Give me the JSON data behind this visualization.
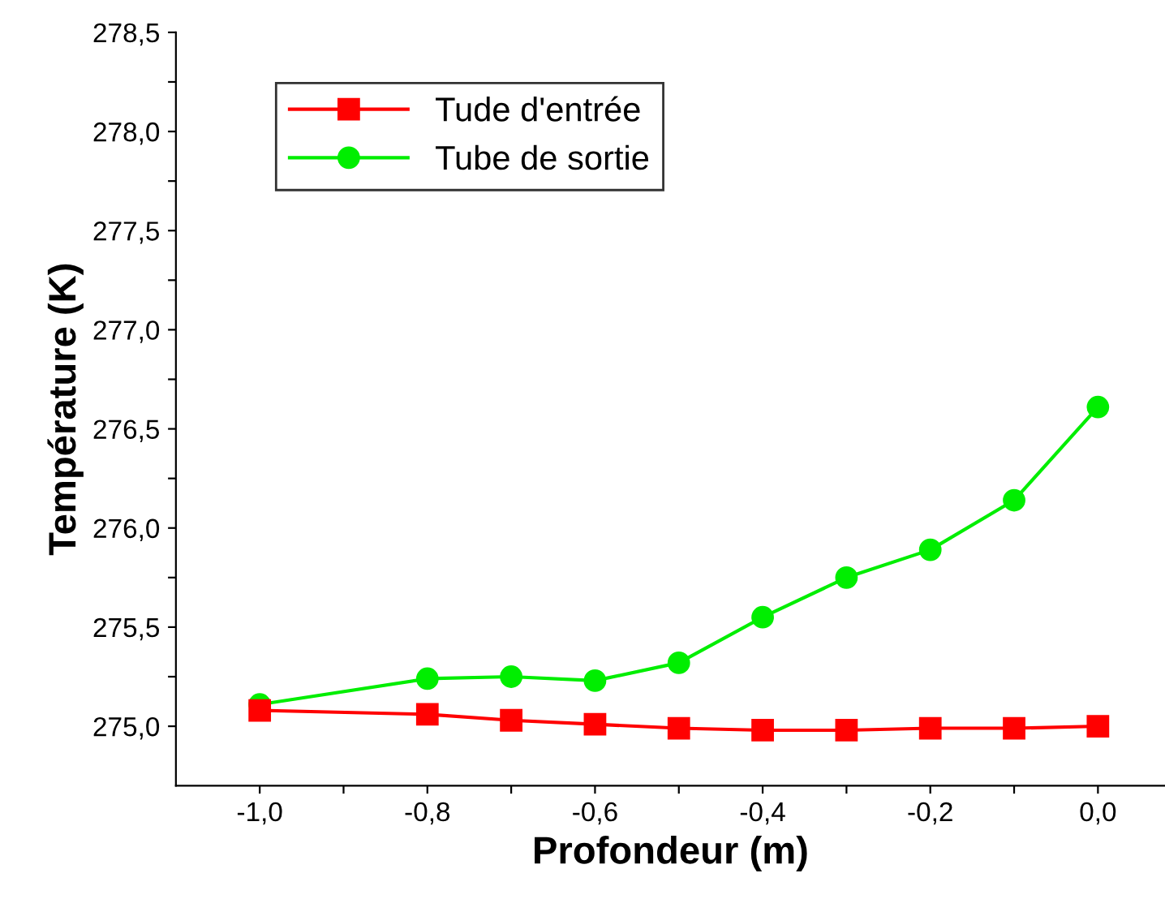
{
  "chart_data": {
    "type": "line",
    "xlabel": "Profondeur (m)",
    "ylabel": "Température (K)",
    "x": [
      -1.0,
      -0.8,
      -0.7,
      -0.6,
      -0.5,
      -0.4,
      -0.3,
      -0.2,
      -0.1,
      0.0
    ],
    "series": [
      {
        "name": "Tude d'entrée",
        "color": "#ff0000",
        "marker": "square",
        "values": [
          275.08,
          275.06,
          275.03,
          275.01,
          274.99,
          274.98,
          274.98,
          274.99,
          274.99,
          275.0
        ]
      },
      {
        "name": "Tube de sortie",
        "color": "#00ee00",
        "marker": "circle",
        "values": [
          275.11,
          275.24,
          275.25,
          275.23,
          275.32,
          275.55,
          275.75,
          275.89,
          276.14,
          276.61
        ]
      }
    ],
    "xlim": [
      -1.1,
      0.08
    ],
    "ylim": [
      274.7,
      278.5
    ],
    "xticks": [
      {
        "value": -1.0,
        "label": "-1,0"
      },
      {
        "value": -0.9,
        "label": null
      },
      {
        "value": -0.8,
        "label": "-0,8"
      },
      {
        "value": -0.7,
        "label": null
      },
      {
        "value": -0.6,
        "label": "-0,6"
      },
      {
        "value": -0.5,
        "label": null
      },
      {
        "value": -0.4,
        "label": "-0,4"
      },
      {
        "value": -0.3,
        "label": null
      },
      {
        "value": -0.2,
        "label": "-0,2"
      },
      {
        "value": -0.1,
        "label": null
      },
      {
        "value": 0.0,
        "label": "0,0"
      }
    ],
    "yticks": [
      {
        "value": 275.0,
        "label": "275,0"
      },
      {
        "value": 275.25,
        "label": null
      },
      {
        "value": 275.5,
        "label": "275,5"
      },
      {
        "value": 275.75,
        "label": null
      },
      {
        "value": 276.0,
        "label": "276,0"
      },
      {
        "value": 276.25,
        "label": null
      },
      {
        "value": 276.5,
        "label": "276,5"
      },
      {
        "value": 276.75,
        "label": null
      },
      {
        "value": 277.0,
        "label": "277,0"
      },
      {
        "value": 277.25,
        "label": null
      },
      {
        "value": 277.5,
        "label": "277,5"
      },
      {
        "value": 277.75,
        "label": null
      },
      {
        "value": 278.0,
        "label": "278,0"
      },
      {
        "value": 278.25,
        "label": null
      },
      {
        "value": 278.5,
        "label": "278,5"
      }
    ],
    "grid": false,
    "legend": "top left",
    "line_style": "solid"
  }
}
